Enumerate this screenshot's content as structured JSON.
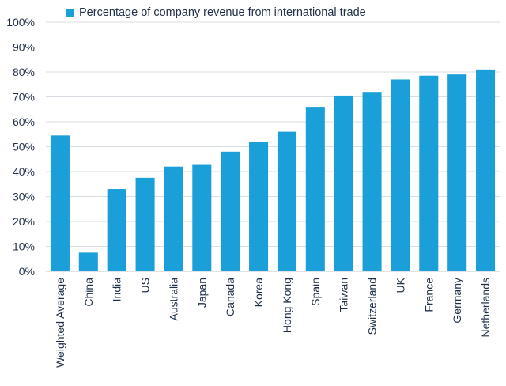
{
  "chart_data": {
    "type": "bar",
    "title": "",
    "xlabel": "",
    "ylabel": "",
    "categories": [
      "Weighted Average",
      "China",
      "India",
      "US",
      "Australia",
      "Japan",
      "Canada",
      "Korea",
      "Hong Kong",
      "Spain",
      "Taiwan",
      "Switzerland",
      "UK",
      "France",
      "Germany",
      "Netherlands"
    ],
    "series": [
      {
        "name": "Percentage of company revenue from international trade",
        "color": "#1a9fd8",
        "values": [
          54.5,
          7.5,
          33,
          37.5,
          42,
          43,
          48,
          52,
          56,
          66,
          70.5,
          72,
          77,
          78.5,
          79,
          81
        ]
      }
    ],
    "ylim": [
      0,
      100
    ],
    "yticks": [
      0,
      10,
      20,
      30,
      40,
      50,
      60,
      70,
      80,
      90,
      100
    ],
    "ytick_labels": [
      "0%",
      "10%",
      "20%",
      "30%",
      "40%",
      "50%",
      "60%",
      "70%",
      "80%",
      "90%",
      "100%"
    ],
    "legend_position": "top-left",
    "grid": true,
    "tick_label_rotation": "vertical"
  }
}
